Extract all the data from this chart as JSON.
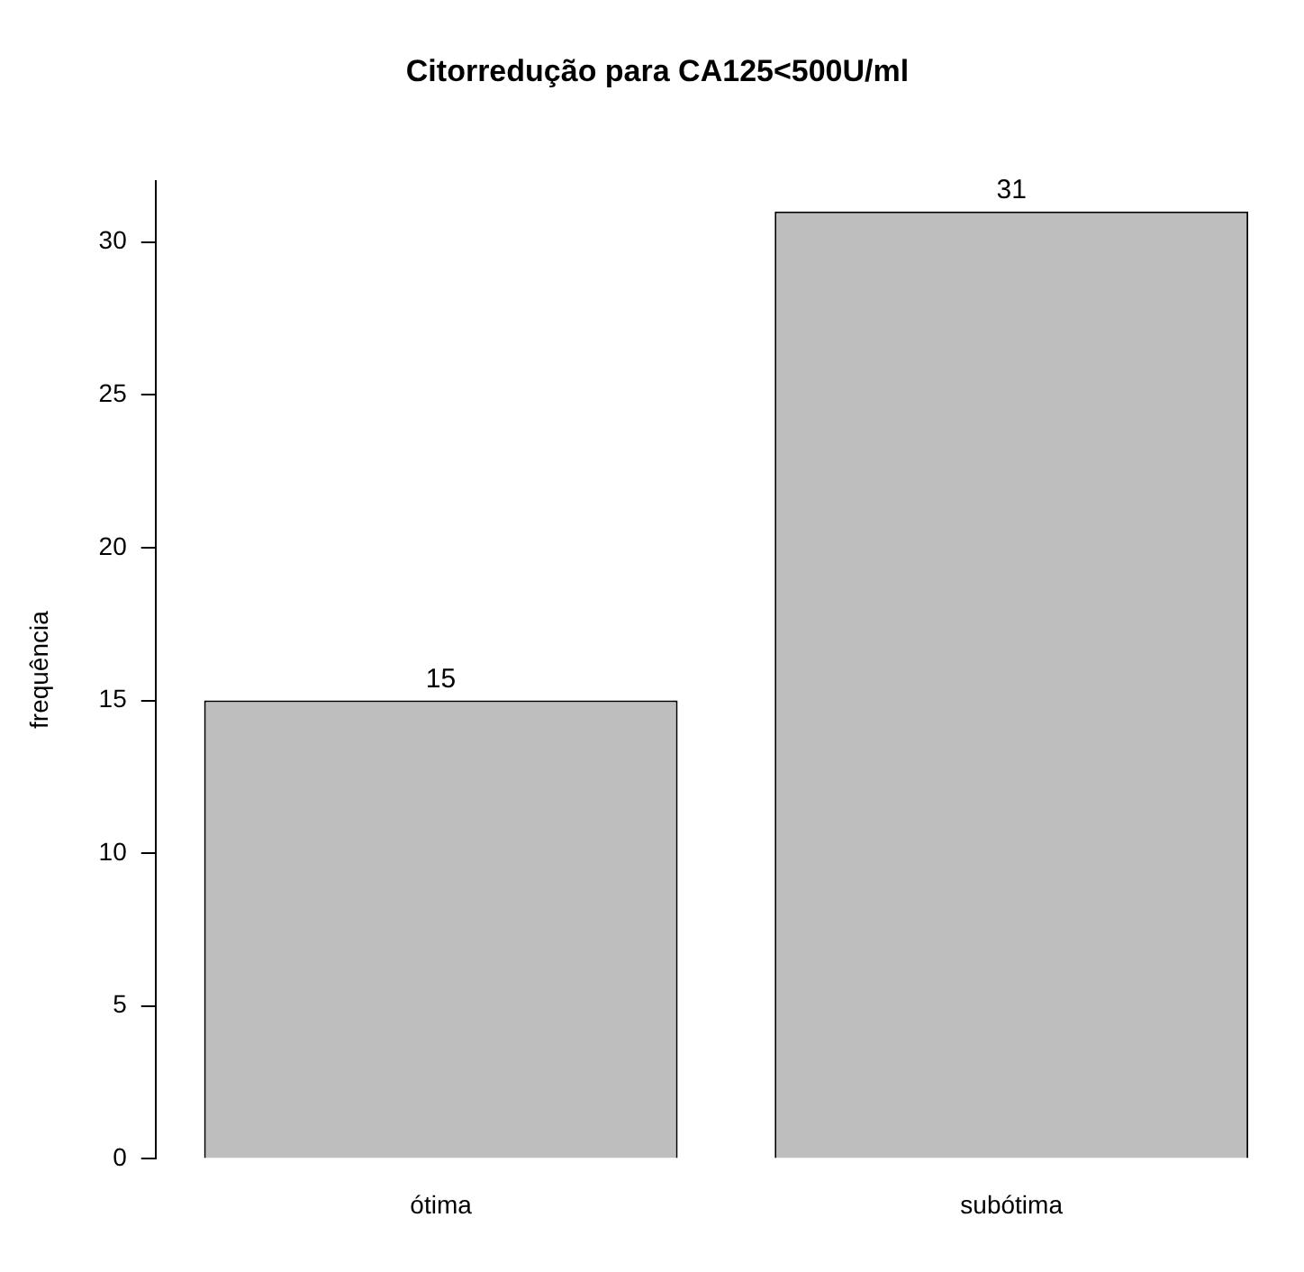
{
  "chart_data": {
    "type": "bar",
    "title": "Citorredução para CA125<500U/ml",
    "ylabel": "frequência",
    "categories": [
      "ótima",
      "subótima"
    ],
    "values": [
      15,
      31
    ],
    "color": "#bebebe",
    "ylim": [
      0,
      32
    ],
    "yticks": [
      0,
      5,
      10,
      15,
      20,
      25,
      30
    ],
    "grid": false,
    "data_labels": true,
    "legend": false
  }
}
